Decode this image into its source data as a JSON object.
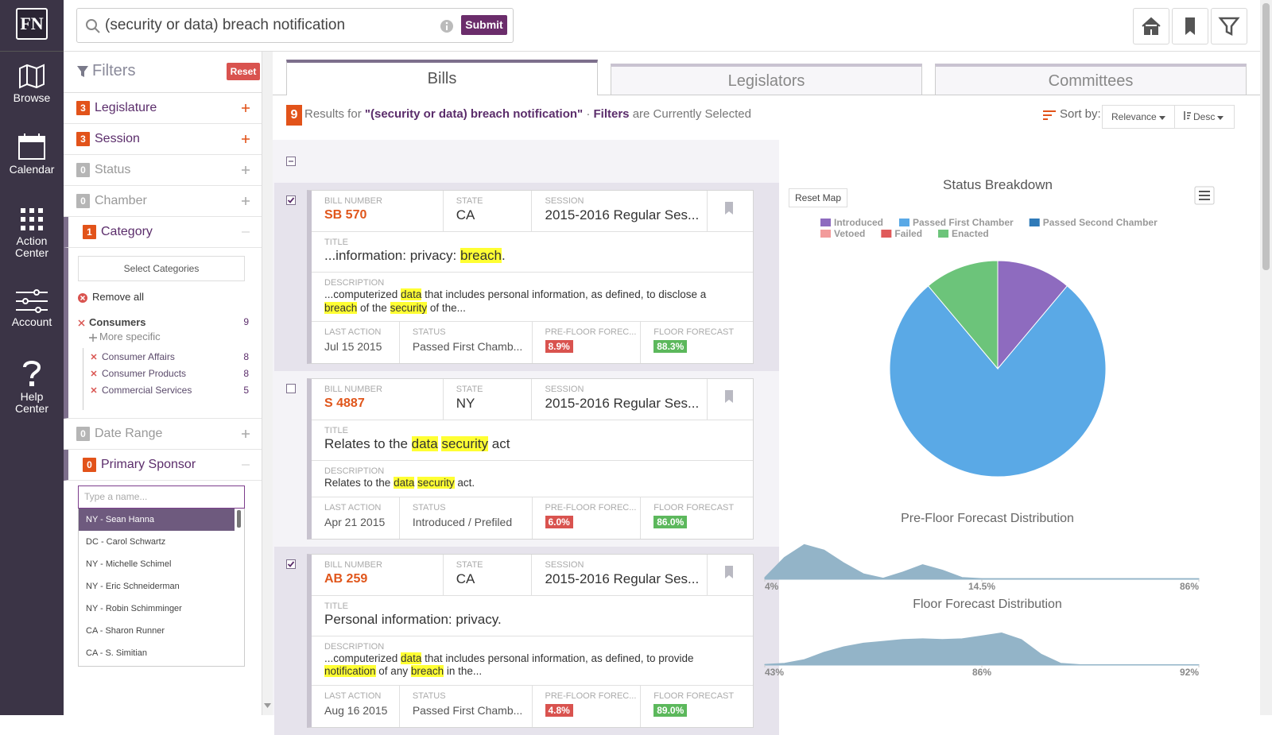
{
  "nav": {
    "logo": "FN",
    "items": [
      "Browse",
      "Calendar",
      "Action Center",
      "Account",
      "Help Center"
    ]
  },
  "search": {
    "query": "(security or data) breach notification",
    "submit": "Submit"
  },
  "filters": {
    "title": "Filters",
    "reset": "Reset",
    "groups": [
      {
        "count": 3,
        "label": "Legislature",
        "active": true,
        "expanded": false
      },
      {
        "count": 3,
        "label": "Session",
        "active": true,
        "expanded": false
      },
      {
        "count": 0,
        "label": "Status",
        "active": false,
        "expanded": false
      },
      {
        "count": 0,
        "label": "Chamber",
        "active": false,
        "expanded": false
      },
      {
        "count": 1,
        "label": "Category",
        "active": true,
        "expanded": true,
        "body": {
          "select_button": "Select Categories",
          "remove_all": "Remove all",
          "items": [
            {
              "name": "Consumers",
              "count": 9,
              "more": "More specific",
              "children": [
                {
                  "name": "Consumer Affairs",
                  "count": 8
                },
                {
                  "name": "Consumer Products",
                  "count": 8
                },
                {
                  "name": "Commercial Services",
                  "count": 5
                }
              ]
            }
          ]
        }
      },
      {
        "count": 0,
        "label": "Date Range",
        "active": false,
        "expanded": false
      },
      {
        "count": 0,
        "label": "Primary Sponsor",
        "active": true,
        "expanded": true,
        "body": {
          "placeholder": "Type a name...",
          "options": [
            "NY - Sean Hanna",
            "DC - Carol Schwartz",
            "NY - Michelle Schimel",
            "NY - Eric Schneiderman",
            "NY - Robin Schimminger",
            "CA - Sharon Runner",
            "CA - S. Simitian"
          ]
        }
      }
    ]
  },
  "tabs": [
    "Bills",
    "Legislators",
    "Committees"
  ],
  "results": {
    "count": 9,
    "prefix": "Results for",
    "query": "\"(security or data) breach notification\"",
    "separator": "·",
    "filters_word": "Filters",
    "suffix": "are Currently Selected",
    "sort_label": "Sort by:",
    "sort_field": "Relevance",
    "sort_order": "Desc"
  },
  "bill_labels": {
    "number": "BILL NUMBER",
    "state": "STATE",
    "session": "SESSION",
    "title": "TITLE",
    "description": "DESCRIPTION",
    "last_action": "LAST ACTION",
    "status": "STATUS",
    "pre_floor": "PRE-FLOOR FOREC...",
    "floor": "FLOOR FORECAST"
  },
  "bills": [
    {
      "checked": true,
      "number": "SB 570",
      "state": "CA",
      "session": "2015-2016 Regular Ses...",
      "title": [
        {
          "text": "...information: privacy: ",
          "hl": false
        },
        {
          "text": "breach",
          "hl": true
        },
        {
          "text": ".",
          "hl": false
        }
      ],
      "description": [
        {
          "text": "...computerized ",
          "hl": false
        },
        {
          "text": "data",
          "hl": true
        },
        {
          "text": " that includes personal information, as defined, to disclose a ",
          "hl": false
        },
        {
          "text": "breach",
          "hl": true
        },
        {
          "text": " of the ",
          "hl": false
        },
        {
          "text": "security",
          "hl": true
        },
        {
          "text": " of the...",
          "hl": false
        }
      ],
      "last_action": "Jul 15 2015",
      "status": "Passed First Chamb...",
      "pre_floor": "8.9%",
      "floor": "88.3%"
    },
    {
      "checked": false,
      "number": "S 4887",
      "state": "NY",
      "session": "2015-2016 Regular Ses...",
      "title": [
        {
          "text": "Relates to the ",
          "hl": false
        },
        {
          "text": "data",
          "hl": true
        },
        {
          "text": " ",
          "hl": false
        },
        {
          "text": "security",
          "hl": true
        },
        {
          "text": " act",
          "hl": false
        }
      ],
      "description": [
        {
          "text": "Relates to the ",
          "hl": false
        },
        {
          "text": "data",
          "hl": true
        },
        {
          "text": " ",
          "hl": false
        },
        {
          "text": "security",
          "hl": true
        },
        {
          "text": " act.",
          "hl": false
        }
      ],
      "last_action": "Apr 21 2015",
      "status": "Introduced / Prefiled",
      "pre_floor": "6.0%",
      "floor": "86.0%"
    },
    {
      "checked": true,
      "number": "AB 259",
      "state": "CA",
      "session": "2015-2016 Regular Ses...",
      "title": [
        {
          "text": "Personal information: privacy.",
          "hl": false
        }
      ],
      "description": [
        {
          "text": "...computerized ",
          "hl": false
        },
        {
          "text": "data",
          "hl": true
        },
        {
          "text": " that includes personal information, as defined, to provide ",
          "hl": false
        },
        {
          "text": "notification",
          "hl": true
        },
        {
          "text": " of any ",
          "hl": false
        },
        {
          "text": "breach",
          "hl": true
        },
        {
          "text": " in the...",
          "hl": false
        }
      ],
      "last_action": "Aug 16 2015",
      "status": "Passed First Chamb...",
      "pre_floor": "4.8%",
      "floor": "89.0%"
    }
  ],
  "reset_map": "Reset Map",
  "chart_data": [
    {
      "type": "pie",
      "title": "Status Breakdown",
      "categories": [
        "Introduced",
        "Passed First Chamber",
        "Passed Second Chamber",
        "Vetoed",
        "Failed",
        "Enacted"
      ],
      "values": [
        1,
        7,
        0,
        0,
        0,
        1
      ],
      "colors": [
        "#8e6bbf",
        "#5aa9e6",
        "#2f7ab8",
        "#f29b9b",
        "#e05a5a",
        "#6cc47a"
      ]
    },
    {
      "type": "area",
      "title": "Pre-Floor Forecast Distribution",
      "color": "#93b4c8",
      "ylim": [
        0,
        1
      ],
      "values": [
        0.05,
        0.6,
        0.95,
        0.8,
        0.45,
        0.15,
        0.03,
        0.2,
        0.4,
        0.25,
        0.05,
        0.02,
        0.02,
        0.02,
        0.02,
        0.02,
        0.02,
        0.02,
        0.02,
        0.02,
        0.02,
        0.02,
        0.02
      ],
      "xticks": [
        {
          "value": 4,
          "label": "4%"
        },
        {
          "value": 14.5,
          "label": "14.5%"
        },
        {
          "value": 86,
          "label": "86%"
        }
      ]
    },
    {
      "type": "area",
      "title": "Floor Forecast Distribution",
      "color": "#93b4c8",
      "ylim": [
        0,
        1
      ],
      "values": [
        0.02,
        0.05,
        0.15,
        0.35,
        0.5,
        0.6,
        0.65,
        0.7,
        0.72,
        0.7,
        0.72,
        0.8,
        0.88,
        0.7,
        0.3,
        0.05,
        0.01,
        0.01,
        0.01,
        0.01,
        0.01,
        0.01,
        0.01
      ],
      "xticks": [
        {
          "value": 43,
          "label": "43%"
        },
        {
          "value": 86,
          "label": "86%"
        },
        {
          "value": 92,
          "label": "92%"
        }
      ]
    }
  ]
}
